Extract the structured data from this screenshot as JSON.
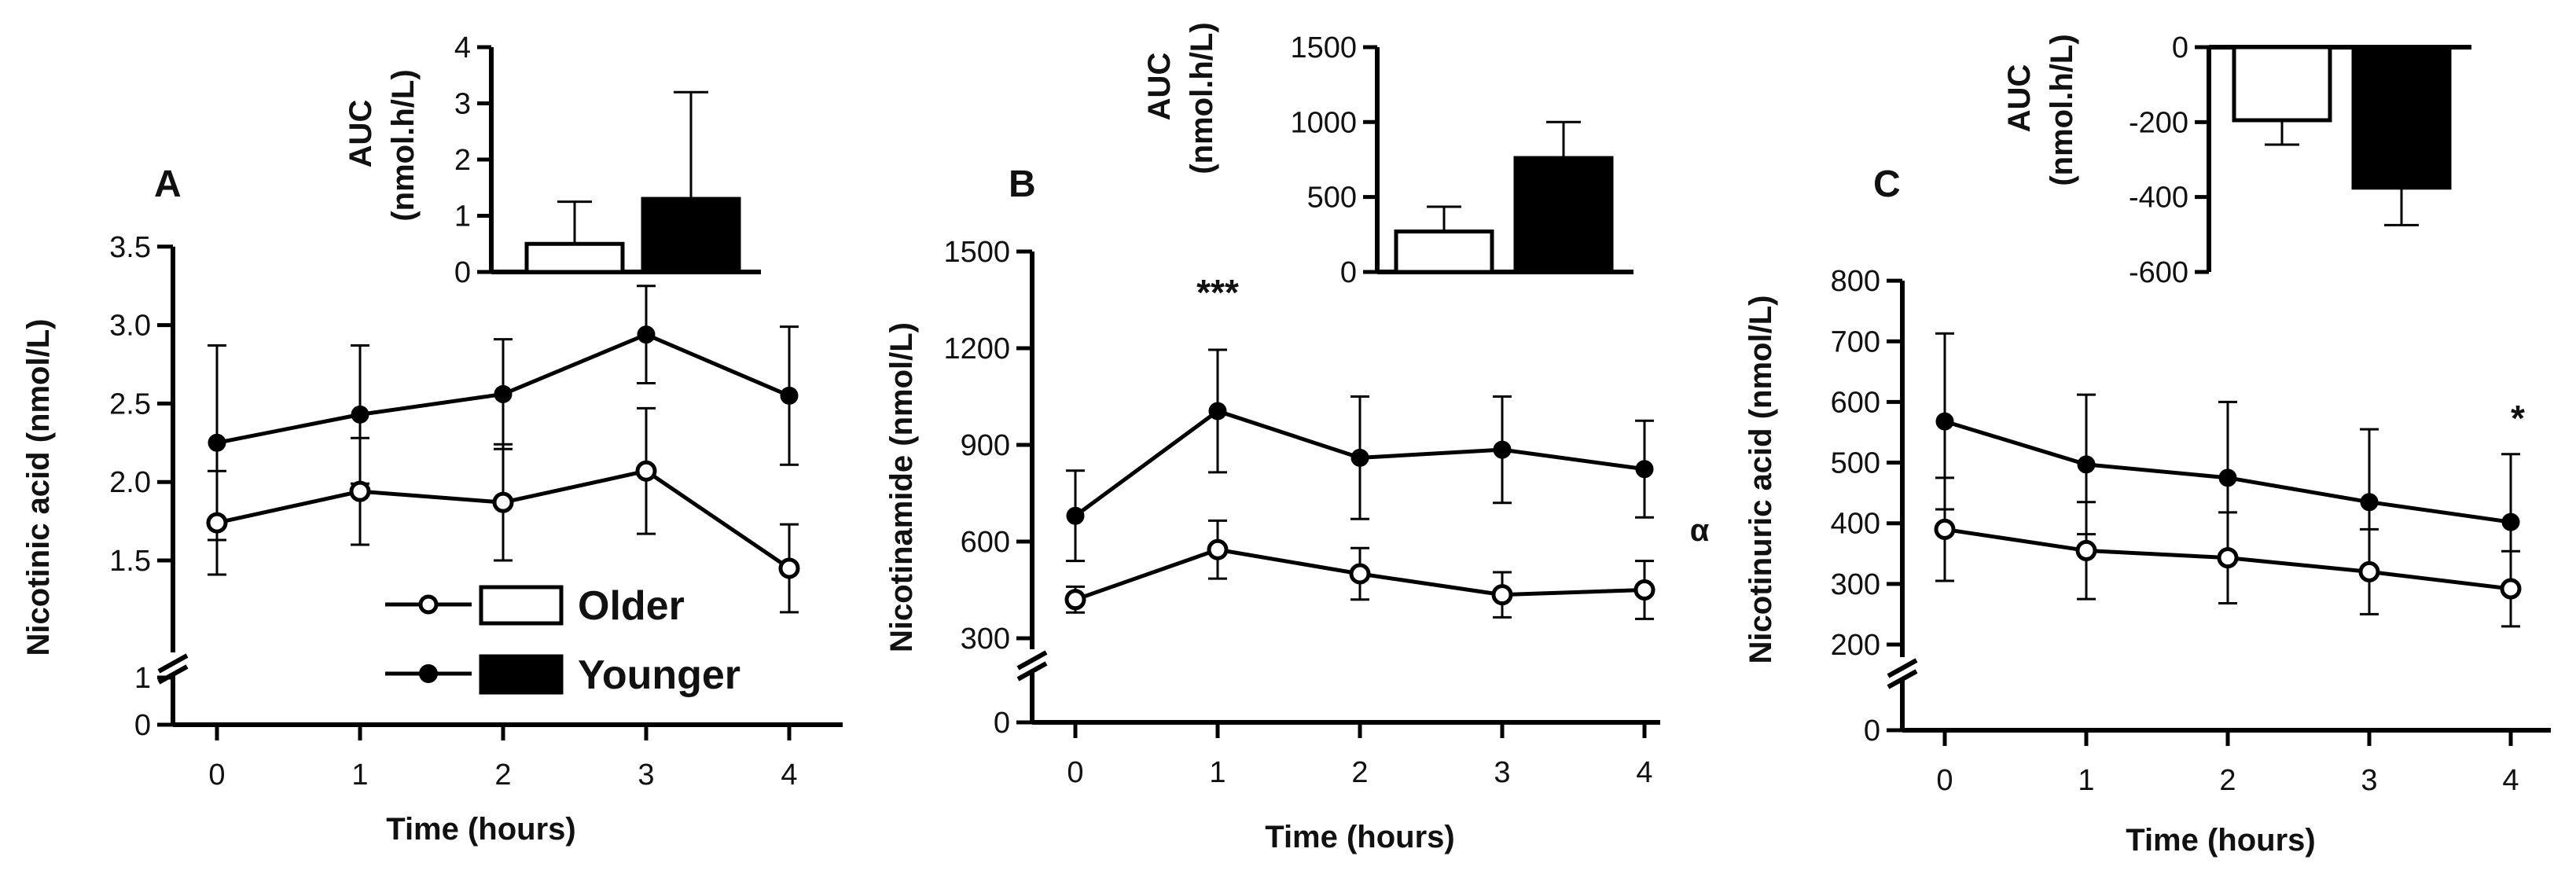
{
  "figure": {
    "legend": {
      "older": "Older",
      "younger": "Younger"
    },
    "colors": {
      "older_fill": "#ffffff",
      "younger_fill": "#000000",
      "stroke": "#000000"
    }
  },
  "chart_data": [
    {
      "panel": "A",
      "type": "line",
      "xlabel": "Time (hours)",
      "ylabel": "Nicotinic acid (nmol/L)",
      "x": [
        0,
        1,
        2,
        3,
        4
      ],
      "y_ticks": [
        "1.5",
        "2.0",
        "2.5",
        "3.0",
        "3.5"
      ],
      "y_break_ticks": [
        "0",
        "1"
      ],
      "ylim": [
        1.25,
        3.5
      ],
      "series": [
        {
          "name": "Older",
          "values": [
            1.74,
            1.94,
            1.87,
            2.07,
            1.45
          ],
          "err": [
            0.33,
            0.34,
            0.37,
            0.4,
            0.28
          ]
        },
        {
          "name": "Younger",
          "values": [
            2.25,
            2.43,
            2.56,
            2.94,
            2.55
          ],
          "err": [
            0.62,
            0.44,
            0.35,
            0.31,
            0.44
          ]
        }
      ],
      "annotations": [],
      "inset": {
        "type": "bar",
        "ylabel_line1": "AUC",
        "ylabel_line2": "(nmol.h/L)",
        "categories": [
          "Older",
          "Younger"
        ],
        "values": [
          0.5,
          1.3
        ],
        "err": [
          0.75,
          1.9
        ],
        "ylim": [
          0,
          4
        ],
        "y_ticks": [
          "0",
          "1",
          "2",
          "3",
          "4"
        ]
      }
    },
    {
      "panel": "B",
      "type": "line",
      "xlabel": "Time (hours)",
      "ylabel": "Nicotinamide (nmol/L)",
      "x": [
        0,
        1,
        2,
        3,
        4
      ],
      "y_ticks": [
        "300",
        "600",
        "900",
        "1200",
        "1500"
      ],
      "y_break_ticks": [
        "0"
      ],
      "ylim": [
        250,
        1500
      ],
      "series": [
        {
          "name": "Older",
          "values": [
            420,
            575,
            500,
            435,
            450
          ],
          "err": [
            40,
            90,
            80,
            70,
            90
          ]
        },
        {
          "name": "Younger",
          "values": [
            680,
            1005,
            860,
            885,
            825
          ],
          "err": [
            140,
            190,
            190,
            165,
            150
          ]
        }
      ],
      "annotations": [
        {
          "at_x": 1,
          "text": "***"
        },
        {
          "at_x": "right",
          "text": "α"
        }
      ],
      "inset": {
        "type": "bar",
        "ylabel_line1": "AUC",
        "ylabel_line2": "(nmol.h/L)",
        "categories": [
          "Older",
          "Younger"
        ],
        "values": [
          270,
          760
        ],
        "err": [
          165,
          240
        ],
        "ylim": [
          0,
          1500
        ],
        "y_ticks": [
          "0",
          "500",
          "1000",
          "1500"
        ]
      }
    },
    {
      "panel": "C",
      "type": "line",
      "xlabel": "Time (hours)",
      "ylabel": "Nicotinuric acid (nmol/L)",
      "x": [
        0,
        1,
        2,
        3,
        4
      ],
      "y_ticks": [
        "200",
        "300",
        "400",
        "500",
        "600",
        "700",
        "800"
      ],
      "y_break_ticks": [
        "0"
      ],
      "ylim": [
        180,
        800
      ],
      "series": [
        {
          "name": "Older",
          "values": [
            390,
            355,
            343,
            320,
            292
          ],
          "err": [
            85,
            80,
            75,
            70,
            62
          ]
        },
        {
          "name": "Younger",
          "values": [
            568,
            497,
            475,
            435,
            402
          ],
          "err": [
            145,
            115,
            125,
            120,
            112
          ]
        }
      ],
      "annotations": [
        {
          "at_x": 4,
          "text": "*"
        }
      ],
      "inset": {
        "type": "bar",
        "ylabel_line1": "AUC",
        "ylabel_line2": "(nmol.h/L)",
        "categories": [
          "Older",
          "Younger"
        ],
        "values": [
          -195,
          -375
        ],
        "err": [
          65,
          100
        ],
        "ylim": [
          -600,
          0
        ],
        "y_ticks": [
          "-600",
          "-400",
          "-200",
          "0"
        ]
      }
    }
  ]
}
